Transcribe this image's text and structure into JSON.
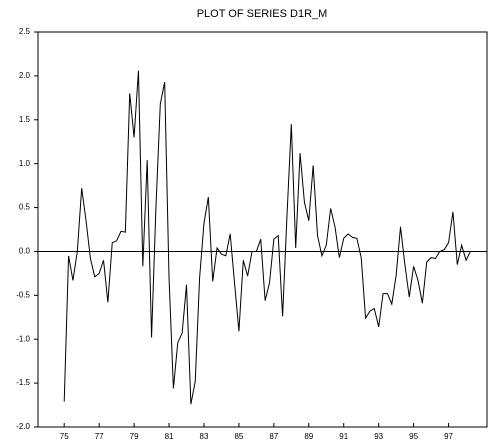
{
  "chart_data": {
    "type": "line",
    "title": "PLOT OF SERIES D1R_M",
    "x": [
      75,
      75.25,
      75.5,
      75.75,
      76,
      76.25,
      76.5,
      76.75,
      77,
      77.25,
      77.5,
      77.75,
      78,
      78.25,
      78.5,
      78.75,
      79,
      79.25,
      79.5,
      79.75,
      80,
      80.25,
      80.5,
      80.75,
      81,
      81.25,
      81.5,
      81.75,
      82,
      82.25,
      82.5,
      82.75,
      83,
      83.25,
      83.5,
      83.75,
      84,
      84.25,
      84.5,
      84.75,
      85,
      85.25,
      85.5,
      85.75,
      86,
      86.25,
      86.5,
      86.75,
      87,
      87.25,
      87.5,
      87.75,
      88,
      88.25,
      88.5,
      88.75,
      89,
      89.25,
      89.5,
      89.75,
      90,
      90.25,
      90.5,
      90.75,
      91,
      91.25,
      91.5,
      91.75,
      92,
      92.25,
      92.5,
      92.75,
      93,
      93.25,
      93.5,
      93.75,
      94,
      94.25,
      94.5,
      94.75,
      95,
      95.25,
      95.5,
      95.75,
      96,
      96.25,
      96.5,
      96.75,
      97,
      97.25,
      97.5,
      97.75,
      98,
      98.25
    ],
    "series": [
      {
        "color": "#000000",
        "values": [
          -1.71,
          -0.05,
          -0.33,
          0.0,
          0.72,
          0.35,
          -0.08,
          -0.29,
          -0.25,
          -0.1,
          -0.58,
          0.1,
          0.12,
          0.23,
          0.22,
          1.8,
          1.3,
          2.06,
          -0.17,
          1.04,
          -0.98,
          0.5,
          1.68,
          1.93,
          -0.3,
          -1.56,
          -1.04,
          -0.93,
          -0.38,
          -1.74,
          -1.48,
          -0.3,
          0.32,
          0.62,
          -0.34,
          0.04,
          -0.03,
          -0.05,
          0.2,
          -0.36,
          -0.91,
          -0.1,
          -0.28,
          0.0,
          0.0,
          0.14,
          -0.56,
          -0.36,
          0.14,
          0.18,
          -0.74,
          0.4,
          1.45,
          0.04,
          1.12,
          0.56,
          0.35,
          0.98,
          0.18,
          -0.05,
          0.07,
          0.49,
          0.28,
          -0.07,
          0.15,
          0.2,
          0.16,
          0.15,
          -0.07,
          -0.76,
          -0.68,
          -0.65,
          -0.86,
          -0.48,
          -0.48,
          -0.6,
          -0.27,
          0.28,
          -0.15,
          -0.52,
          -0.17,
          -0.33,
          -0.59,
          -0.12,
          -0.07,
          -0.08,
          0.0,
          0.02,
          0.1,
          0.45,
          -0.15,
          0.07,
          -0.1,
          0.0
        ]
      }
    ],
    "xlim": [
      73.5,
      99.2
    ],
    "xticks": [
      75,
      77,
      79,
      81,
      83,
      85,
      87,
      89,
      91,
      93,
      95,
      97
    ],
    "ylim": [
      -2,
      2.5
    ],
    "yticks": [
      {
        "value": 2.5,
        "label": "2.5"
      },
      {
        "value": 2,
        "label": "2.0"
      },
      {
        "value": 1.5,
        "label": "1.5"
      },
      {
        "value": 1,
        "label": "1.0"
      },
      {
        "value": 0.5,
        "label": "0.5"
      },
      {
        "value": 0,
        "label": "0.0"
      },
      {
        "value": -0.5,
        "label": "-0.5"
      },
      {
        "value": -1,
        "label": "-1.0"
      },
      {
        "value": -1.5,
        "label": "-1.5"
      },
      {
        "value": -2,
        "label": "-2.0"
      }
    ],
    "zero_line": true
  }
}
